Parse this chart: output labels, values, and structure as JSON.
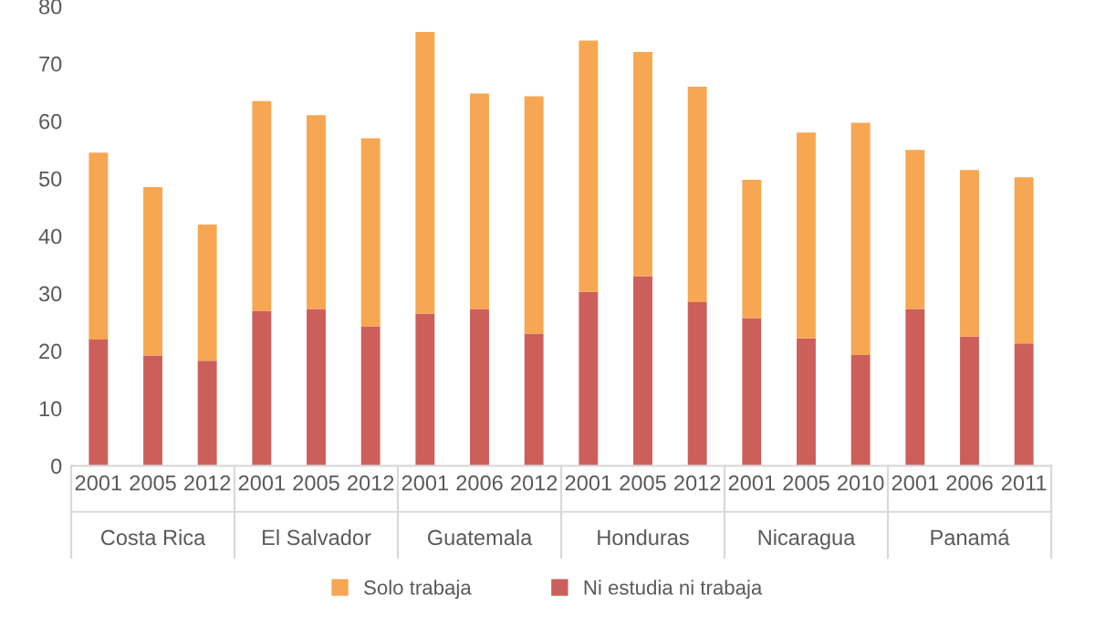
{
  "chart_data": {
    "type": "bar",
    "stacked": true,
    "categories": [
      "2001",
      "2005",
      "2012",
      "2001",
      "2005",
      "2012",
      "2001",
      "2006",
      "2012",
      "2001",
      "2005",
      "2012",
      "2001",
      "2005",
      "2010",
      "2001",
      "2006",
      "2011"
    ],
    "series": [
      {
        "name": "Ni estudia ni trabaja",
        "color": "#cd5f5b",
        "values": [
          22,
          19.2,
          18.3,
          27,
          27.3,
          24.3,
          26.5,
          27.3,
          23,
          30.3,
          33,
          28.5,
          25.7,
          22.2,
          19.3,
          27.3,
          22.5,
          21.3
        ]
      },
      {
        "name": "Solo trabaja",
        "color": "#f7a652",
        "values": [
          32.5,
          29.3,
          23.7,
          36.5,
          33.7,
          32.7,
          49,
          37.5,
          41.3,
          43.7,
          39,
          37.5,
          24.1,
          35.8,
          40.4,
          27.7,
          29,
          28.9
        ]
      }
    ],
    "ylim": [
      0,
      80
    ],
    "yticks": [
      0,
      10,
      20,
      30,
      40,
      50,
      60,
      70,
      80
    ],
    "grid": false,
    "legend": "bottom",
    "annotations": [
      "Costa Rica",
      "El Salvador",
      "Guatemala",
      "Honduras",
      "Nicaragua",
      "Panamá"
    ]
  }
}
